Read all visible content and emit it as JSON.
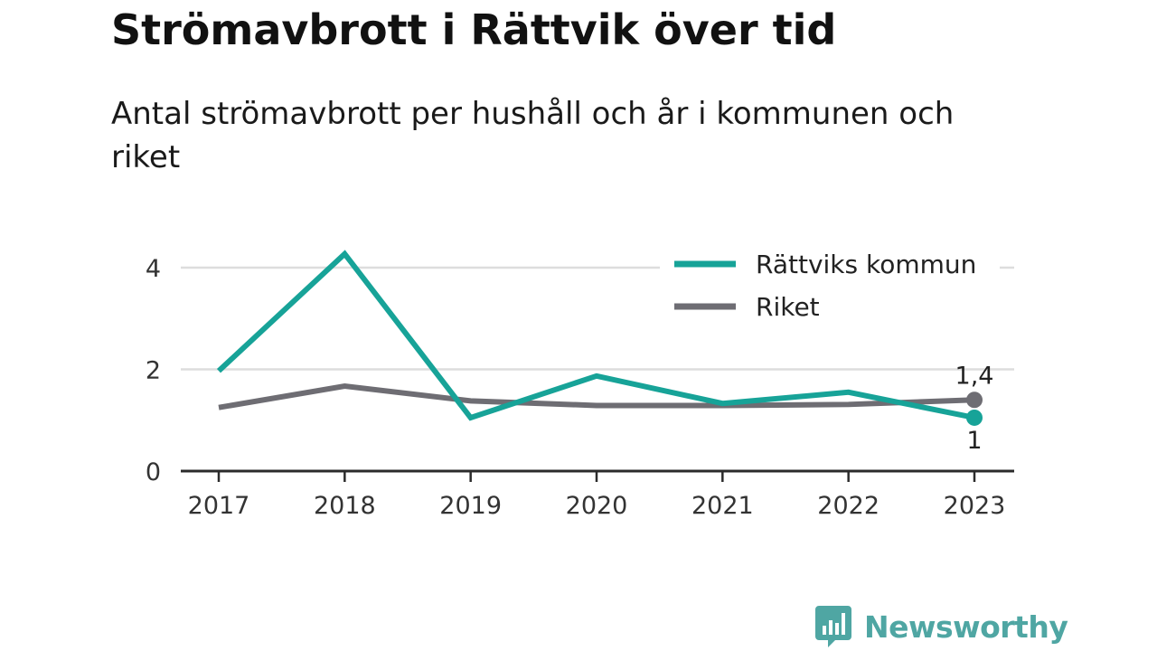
{
  "title": "Strömavbrott i Rättvik över tid",
  "subtitle": "Antal strömavbrott per hushåll och år i kommunen och riket",
  "brand": {
    "name": "Newsworthy",
    "icon": "newsworthy-bar-chart-icon",
    "color": "#4fa6a3"
  },
  "chart_data": {
    "type": "line",
    "x": [
      "2017",
      "2018",
      "2019",
      "2020",
      "2021",
      "2022",
      "2023"
    ],
    "ylim": [
      0,
      4.8
    ],
    "yticks": [
      0,
      2,
      4
    ],
    "ytick_labels": [
      "0",
      "2",
      "4"
    ],
    "grid": true,
    "legend_position": "top-right",
    "series": [
      {
        "name": "Rättviks kommun",
        "color": "#17a398",
        "values": [
          1.97,
          4.27,
          1.05,
          1.87,
          1.33,
          1.55,
          1.05
        ],
        "end_label": "1"
      },
      {
        "name": "Riket",
        "color": "#6e6d73",
        "values": [
          1.25,
          1.67,
          1.38,
          1.29,
          1.29,
          1.31,
          1.4
        ],
        "end_label": "1,4"
      }
    ]
  }
}
